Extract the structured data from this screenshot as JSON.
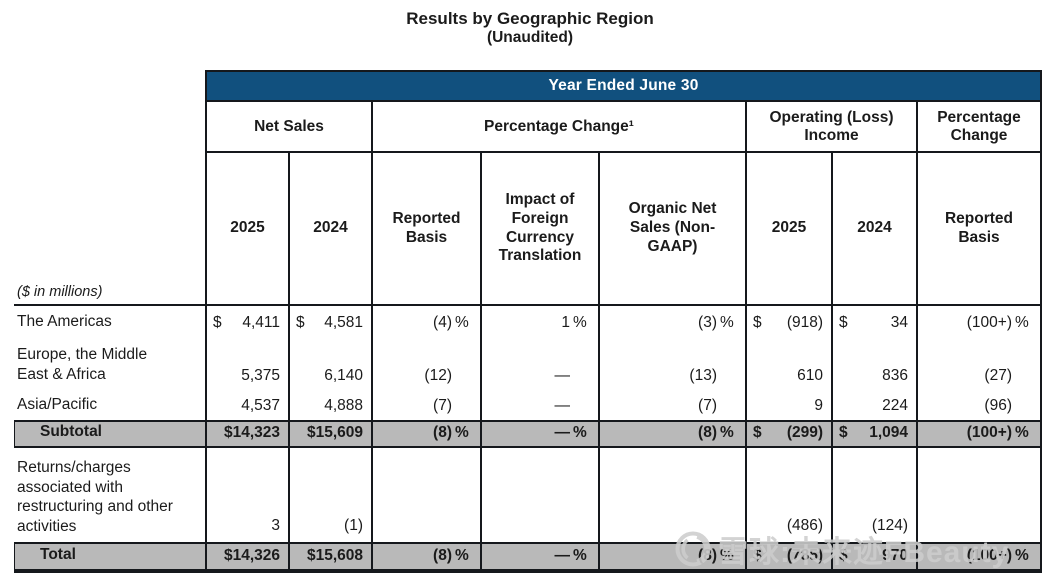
{
  "title": {
    "line1": "Results by Geographic Region",
    "line2": "(Unaudited)"
  },
  "colors": {
    "banner_blue": "#11507e",
    "row_gray": "#b9b9b9",
    "border": "#15181c",
    "watermark_gray": "#cdcdcd"
  },
  "table": {
    "banner": "Year Ended June 30",
    "groups": [
      "Net Sales",
      "Percentage Change¹",
      "Operating (Loss) Income",
      "Percentage Change"
    ],
    "subheaders": [
      "2025",
      "2024",
      "Reported Basis",
      "Impact of Foreign Currency Translation",
      "Organic Net Sales (Non-GAAP)",
      "2025",
      "2024",
      "Reported Basis"
    ],
    "units_note": "($ in millions)",
    "rows": [
      {
        "label": "The Americas",
        "style": "plain",
        "cells": [
          {
            "d": "$",
            "v": "4,411",
            "s": ""
          },
          {
            "d": "$",
            "v": "4,581",
            "s": ""
          },
          {
            "d": "",
            "v": "(4)",
            "s": "%"
          },
          {
            "d": "",
            "v": "1",
            "s": "%"
          },
          {
            "d": "",
            "v": "(3)",
            "s": "%"
          },
          {
            "d": "$",
            "v": "(918)",
            "s": ""
          },
          {
            "d": "$",
            "v": "34",
            "s": ""
          },
          {
            "d": "",
            "v": "(100+)",
            "s": "%"
          }
        ]
      },
      {
        "label": "Europe, the Middle East & Africa",
        "style": "plain",
        "cells": [
          {
            "d": "",
            "v": "5,375",
            "s": ""
          },
          {
            "d": "",
            "v": "6,140",
            "s": ""
          },
          {
            "d": "",
            "v": "(12)",
            "s": ""
          },
          {
            "d": "",
            "v": "—",
            "s": ""
          },
          {
            "d": "",
            "v": "(13)",
            "s": ""
          },
          {
            "d": "",
            "v": "610",
            "s": ""
          },
          {
            "d": "",
            "v": "836",
            "s": ""
          },
          {
            "d": "",
            "v": "(27)",
            "s": ""
          }
        ]
      },
      {
        "label": "Asia/Pacific",
        "style": "plain",
        "cells": [
          {
            "d": "",
            "v": "4,537",
            "s": ""
          },
          {
            "d": "",
            "v": "4,888",
            "s": ""
          },
          {
            "d": "",
            "v": "(7)",
            "s": ""
          },
          {
            "d": "",
            "v": "—",
            "s": ""
          },
          {
            "d": "",
            "v": "(7)",
            "s": ""
          },
          {
            "d": "",
            "v": "9",
            "s": ""
          },
          {
            "d": "",
            "v": "224",
            "s": ""
          },
          {
            "d": "",
            "v": "(96)",
            "s": ""
          }
        ]
      },
      {
        "label": "Subtotal",
        "style": "subtotal",
        "cells": [
          {
            "d": "",
            "v": "$14,323",
            "s": ""
          },
          {
            "d": "",
            "v": "$15,609",
            "s": ""
          },
          {
            "d": "",
            "v": "(8)",
            "s": "%"
          },
          {
            "d": "",
            "v": "—",
            "s": "%"
          },
          {
            "d": "",
            "v": "(8)",
            "s": "%"
          },
          {
            "d": "$",
            "v": "(299)",
            "s": ""
          },
          {
            "d": "$",
            "v": "1,094",
            "s": ""
          },
          {
            "d": "",
            "v": "(100+)",
            "s": "%"
          }
        ]
      },
      {
        "label": "Returns/charges associated with restructuring and other activities",
        "style": "tall",
        "cells": [
          {
            "d": "",
            "v": "3",
            "s": ""
          },
          {
            "d": "",
            "v": "(1)",
            "s": ""
          },
          {
            "d": "",
            "v": "",
            "s": ""
          },
          {
            "d": "",
            "v": "",
            "s": ""
          },
          {
            "d": "",
            "v": "",
            "s": ""
          },
          {
            "d": "",
            "v": "(486)",
            "s": ""
          },
          {
            "d": "",
            "v": "(124)",
            "s": ""
          },
          {
            "d": "",
            "v": "",
            "s": ""
          }
        ]
      },
      {
        "label": "Total",
        "style": "total",
        "cells": [
          {
            "d": "",
            "v": "$14,326",
            "s": ""
          },
          {
            "d": "",
            "v": "$15,608",
            "s": ""
          },
          {
            "d": "",
            "v": "(8)",
            "s": "%"
          },
          {
            "d": "",
            "v": "—",
            "s": "%"
          },
          {
            "d": "",
            "v": "(8)",
            "s": "%"
          },
          {
            "d": "$",
            "v": "(785)",
            "s": ""
          },
          {
            "d": "$",
            "v": "970",
            "s": ""
          },
          {
            "d": "",
            "v": "(100+)",
            "s": "%"
          }
        ]
      }
    ]
  },
  "watermark": {
    "text": "雪球:未来迹FBeauty",
    "logo": "xueqiu-snowball-logo"
  }
}
